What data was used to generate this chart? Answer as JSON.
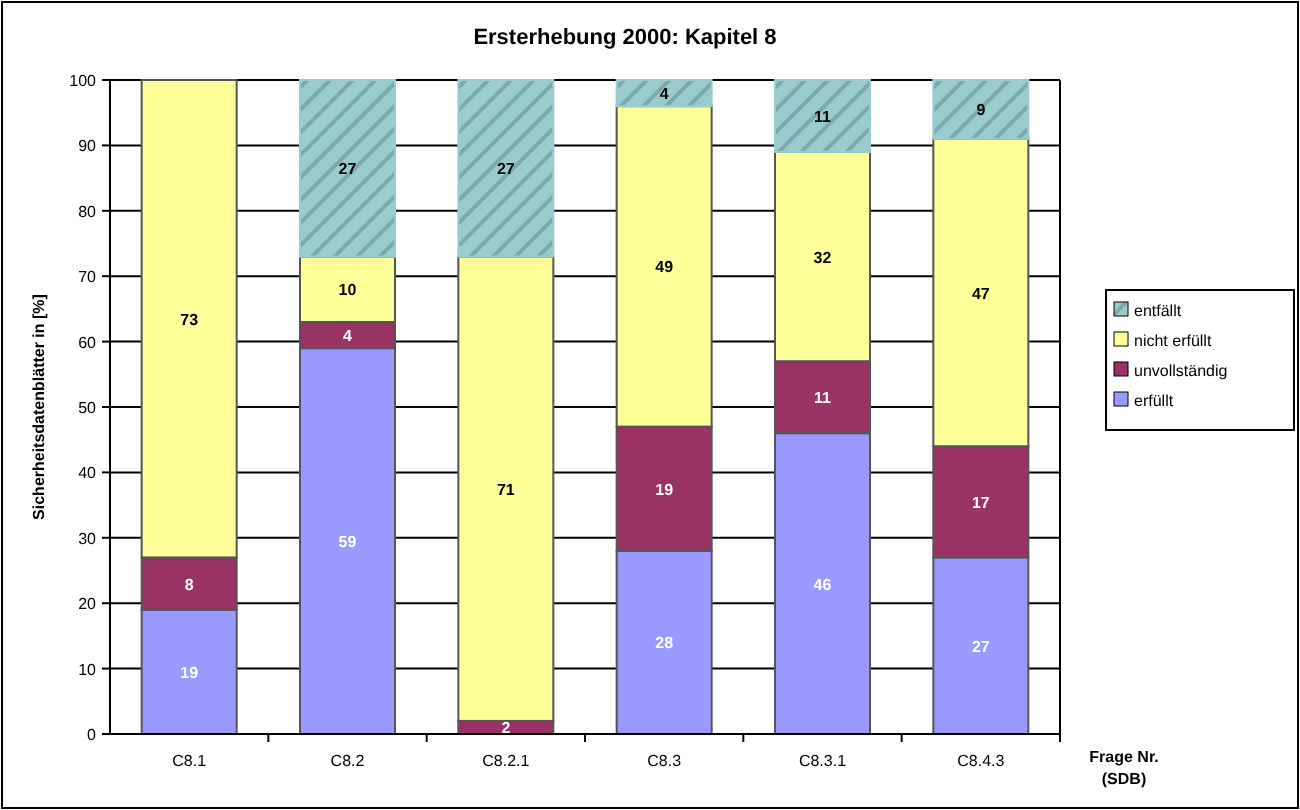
{
  "chart_data": {
    "type": "bar",
    "stacked": true,
    "title": "Ersterhebung 2000: Kapitel 8",
    "xlabel": "Frage Nr.\n(SDB)",
    "ylabel": "Sicherheitsdatenblätter in [%]",
    "categories": [
      "C8.1",
      "C8.2",
      "C8.2.1",
      "C8.3",
      "C8.3.1",
      "C8.4.3"
    ],
    "series": [
      {
        "name": "erfüllt",
        "color": "#9999ff",
        "values": [
          19,
          59,
          0,
          28,
          46,
          27
        ],
        "value_labels": [
          "19",
          "59",
          null,
          "28",
          "46",
          "27"
        ]
      },
      {
        "name": "unvollständig",
        "color": "#993366",
        "values": [
          8,
          4,
          2,
          19,
          11,
          17
        ],
        "value_labels": [
          "8",
          "4",
          "2",
          "19",
          "11",
          "17"
        ]
      },
      {
        "name": "nicht erfüllt",
        "color": "#ffff99",
        "values": [
          73,
          10,
          71,
          49,
          32,
          47
        ],
        "value_labels": [
          "73",
          "10",
          "71",
          "49",
          "32",
          "47"
        ]
      },
      {
        "name": "entfällt",
        "color": "#99cccc",
        "values": [
          0,
          27,
          27,
          4,
          11,
          9
        ],
        "value_labels": [
          null,
          "27",
          "27",
          "4",
          "11",
          "9"
        ]
      }
    ],
    "ylim": [
      0,
      100
    ],
    "yticks": [
      0,
      10,
      20,
      30,
      40,
      50,
      60,
      70,
      80,
      90,
      100
    ],
    "grid": "y",
    "legend": "right"
  }
}
